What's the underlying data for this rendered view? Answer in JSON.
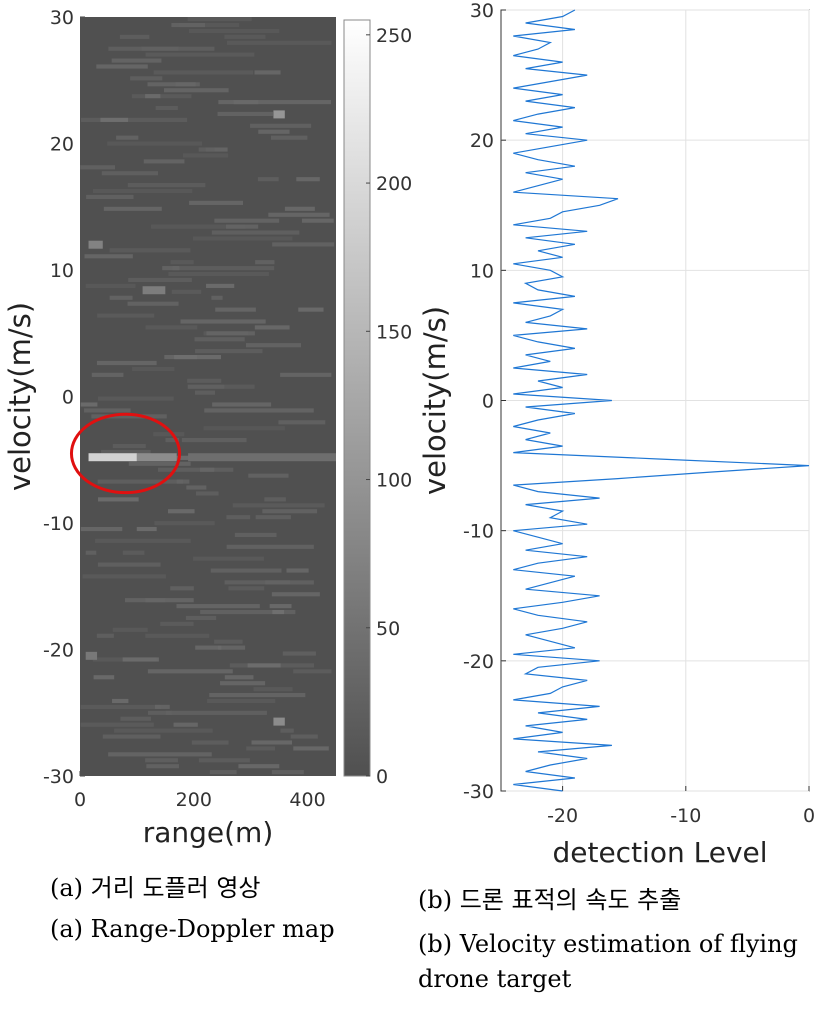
{
  "chart_data": [
    {
      "type": "heatmap",
      "title": "",
      "xlabel": "range(m)",
      "ylabel": "velocity(m/s)",
      "xlim": [
        0,
        450
      ],
      "ylim": [
        -30,
        30
      ],
      "xticks": [
        0,
        200,
        400
      ],
      "yticks": [
        30,
        20,
        10,
        0,
        -10,
        -20,
        -30
      ],
      "colorbar": {
        "ticks": [
          250,
          200,
          150,
          100,
          50,
          0
        ],
        "colormap": "gray",
        "range": [
          0,
          255
        ]
      },
      "background_value": 80,
      "highlights": [
        {
          "range_start": 15,
          "range_end": 100,
          "velocity": -4.8,
          "value": 210
        },
        {
          "range_start": 100,
          "range_end": 170,
          "velocity": -4.8,
          "value": 140
        },
        {
          "range_start": 190,
          "range_end": 450,
          "velocity": -4.8,
          "value": 110
        },
        {
          "range_start": 340,
          "range_end": 360,
          "velocity": 22.3,
          "value": 150
        },
        {
          "range_start": 340,
          "range_end": 360,
          "velocity": -25.7,
          "value": 140
        },
        {
          "range_start": 15,
          "range_end": 40,
          "velocity": 12.0,
          "value": 130
        },
        {
          "range_start": 110,
          "range_end": 150,
          "velocity": 8.4,
          "value": 125
        },
        {
          "range_start": 10,
          "range_end": 30,
          "velocity": -20.5,
          "value": 120
        }
      ],
      "annotation": {
        "shape": "ellipse",
        "color": "#e01010",
        "center": [
          80,
          -4.5
        ],
        "width_range": 190,
        "height_velocity": 6.2
      }
    },
    {
      "type": "line",
      "title": "",
      "xlabel": "detection Level",
      "ylabel": "velocity(m/s)",
      "xlim": [
        -25,
        0
      ],
      "ylim": [
        -30,
        30
      ],
      "xticks": [
        -20,
        -10,
        0
      ],
      "yticks": [
        30,
        20,
        10,
        0,
        -10,
        -20,
        -30
      ],
      "grid": true,
      "line_color": "#1f77d4",
      "series": [
        {
          "velocity": [
            -30,
            -29.5,
            -29,
            -28.5,
            -28,
            -27.5,
            -27,
            -26.5,
            -26,
            -25.5,
            -25,
            -24.5,
            -24,
            -23.5,
            -23,
            -22.5,
            -22,
            -21.5,
            -21,
            -20.5,
            -20,
            -19.5,
            -19,
            -18.5,
            -18,
            -17.5,
            -17,
            -16.5,
            -16,
            -15.5,
            -15,
            -14.5,
            -14,
            -13.5,
            -13,
            -12.5,
            -12,
            -11.5,
            -11,
            -10.5,
            -10,
            -9.5,
            -9,
            -8.5,
            -8,
            -7.5,
            -7,
            -6.5,
            -6,
            -5.5,
            -5,
            -4.5,
            -4,
            -3.5,
            -3,
            -2.5,
            -2,
            -1.5,
            -1,
            -0.5,
            0,
            0.5,
            1,
            1.5,
            2,
            2.5,
            3,
            3.5,
            4,
            4.5,
            5,
            5.5,
            6,
            6.5,
            7,
            7.5,
            8,
            8.5,
            9,
            9.5,
            10,
            10.5,
            11,
            11.5,
            12,
            12.5,
            13,
            13.5,
            14,
            14.5,
            15,
            15.5,
            16,
            16.5,
            17,
            17.5,
            18,
            18.5,
            19,
            19.5,
            20,
            20.5,
            21,
            21.5,
            22,
            22.5,
            23,
            23.5,
            24,
            24.5,
            25,
            25.5,
            26,
            26.5,
            27,
            27.5,
            28,
            28.5,
            29,
            29.5,
            30
          ],
          "level": [
            -20,
            -24,
            -19,
            -23,
            -21,
            -18,
            -22,
            -16,
            -24,
            -20,
            -23,
            -18,
            -22,
            -17,
            -24,
            -21,
            -20,
            -18,
            -23,
            -22,
            -17,
            -24,
            -19,
            -21,
            -23,
            -20,
            -18,
            -22,
            -24,
            -20,
            -17,
            -23,
            -21,
            -19,
            -24,
            -22,
            -18,
            -23,
            -20,
            -22,
            -24,
            -18,
            -21,
            -20,
            -23,
            -17,
            -22,
            -24,
            -15.5,
            -8,
            0,
            -12,
            -24,
            -20,
            -23,
            -21,
            -24,
            -22,
            -19,
            -23,
            -16,
            -24,
            -20,
            -22,
            -18,
            -24,
            -21,
            -23,
            -19,
            -22,
            -24,
            -18,
            -23,
            -21,
            -20,
            -24,
            -19,
            -22,
            -23,
            -20,
            -21,
            -24,
            -20,
            -22,
            -19,
            -23,
            -18,
            -24,
            -21,
            -20,
            -17,
            -15.5,
            -24,
            -22,
            -20,
            -23,
            -19,
            -22,
            -24,
            -21,
            -18,
            -23,
            -20,
            -24,
            -22,
            -19,
            -23,
            -20,
            -24,
            -21,
            -18,
            -23,
            -20,
            -24,
            -22,
            -21,
            -24,
            -19,
            -23,
            -20,
            -19
          ]
        }
      ]
    }
  ],
  "captions": {
    "a_korean": "(a)  거리  도플러  영상",
    "a_english": "(a)  Range-Doppler  map",
    "b_korean": "(b)  드론  표적의  속도  추출",
    "b_english": "(b)  Velocity  estimation  of  flying  drone  target"
  }
}
